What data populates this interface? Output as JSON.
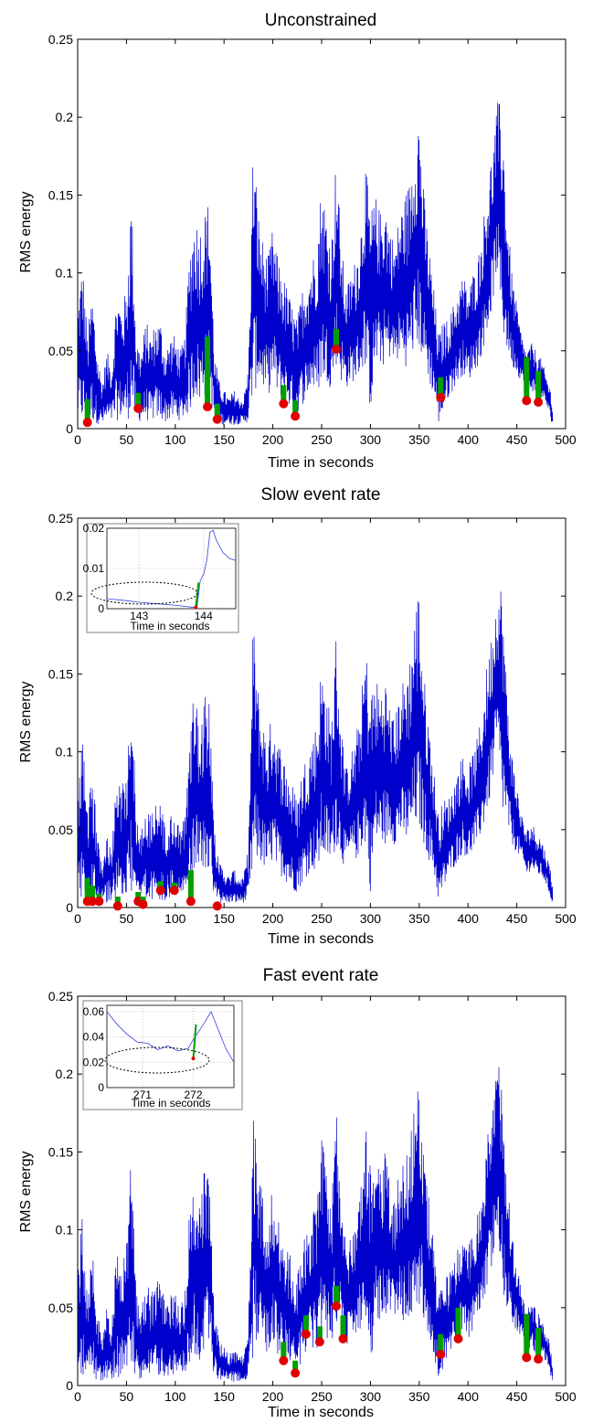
{
  "chart_data": [
    {
      "type": "line",
      "title": "Unconstrained",
      "xlabel": "Time in seconds",
      "ylabel": "RMS energy",
      "xlim": [
        0,
        500
      ],
      "ylim": [
        0,
        0.25
      ],
      "xticks": [
        "0",
        "50",
        "100",
        "150",
        "200",
        "250",
        "300",
        "350",
        "400",
        "450",
        "500"
      ],
      "yticks": [
        "0",
        "0.05",
        "0.1",
        "0.15",
        "0.2",
        "0.25"
      ],
      "grid": false,
      "line_color": "#0000cc",
      "event_color": "#e00000",
      "marker_color": "#00a000",
      "signal_envelope": [
        {
          "x": 0,
          "lo": 0.005,
          "hi": 0.08
        },
        {
          "x": 5,
          "lo": 0.003,
          "hi": 0.11
        },
        {
          "x": 10,
          "lo": 0.002,
          "hi": 0.06
        },
        {
          "x": 15,
          "lo": 0.004,
          "hi": 0.09
        },
        {
          "x": 20,
          "lo": 0.003,
          "hi": 0.05
        },
        {
          "x": 25,
          "lo": 0.002,
          "hi": 0.03
        },
        {
          "x": 30,
          "lo": 0.003,
          "hi": 0.05
        },
        {
          "x": 35,
          "lo": 0.004,
          "hi": 0.04
        },
        {
          "x": 40,
          "lo": 0.005,
          "hi": 0.09
        },
        {
          "x": 45,
          "lo": 0.006,
          "hi": 0.08
        },
        {
          "x": 50,
          "lo": 0.004,
          "hi": 0.09
        },
        {
          "x": 55,
          "lo": 0.01,
          "hi": 0.155
        },
        {
          "x": 60,
          "lo": 0.005,
          "hi": 0.06
        },
        {
          "x": 65,
          "lo": 0.004,
          "hi": 0.05
        },
        {
          "x": 70,
          "lo": 0.005,
          "hi": 0.07
        },
        {
          "x": 75,
          "lo": 0.004,
          "hi": 0.06
        },
        {
          "x": 80,
          "lo": 0.006,
          "hi": 0.07
        },
        {
          "x": 85,
          "lo": 0.005,
          "hi": 0.07
        },
        {
          "x": 90,
          "lo": 0.004,
          "hi": 0.05
        },
        {
          "x": 95,
          "lo": 0.005,
          "hi": 0.06
        },
        {
          "x": 100,
          "lo": 0.006,
          "hi": 0.06
        },
        {
          "x": 105,
          "lo": 0.005,
          "hi": 0.05
        },
        {
          "x": 110,
          "lo": 0.007,
          "hi": 0.06
        },
        {
          "x": 115,
          "lo": 0.01,
          "hi": 0.12
        },
        {
          "x": 120,
          "lo": 0.02,
          "hi": 0.14
        },
        {
          "x": 125,
          "lo": 0.015,
          "hi": 0.13
        },
        {
          "x": 130,
          "lo": 0.02,
          "hi": 0.14
        },
        {
          "x": 135,
          "lo": 0.02,
          "hi": 0.15
        },
        {
          "x": 140,
          "lo": 0.005,
          "hi": 0.05
        },
        {
          "x": 145,
          "lo": 0.003,
          "hi": 0.03
        },
        {
          "x": 150,
          "lo": 0.002,
          "hi": 0.025
        },
        {
          "x": 155,
          "lo": 0.003,
          "hi": 0.02
        },
        {
          "x": 160,
          "lo": 0.002,
          "hi": 0.025
        },
        {
          "x": 165,
          "lo": 0.003,
          "hi": 0.02
        },
        {
          "x": 170,
          "lo": 0.003,
          "hi": 0.02
        },
        {
          "x": 175,
          "lo": 0.004,
          "hi": 0.04
        },
        {
          "x": 180,
          "lo": 0.02,
          "hi": 0.19
        },
        {
          "x": 185,
          "lo": 0.03,
          "hi": 0.14
        },
        {
          "x": 190,
          "lo": 0.025,
          "hi": 0.12
        },
        {
          "x": 195,
          "lo": 0.02,
          "hi": 0.11
        },
        {
          "x": 200,
          "lo": 0.03,
          "hi": 0.13
        },
        {
          "x": 205,
          "lo": 0.02,
          "hi": 0.11
        },
        {
          "x": 210,
          "lo": 0.02,
          "hi": 0.1
        },
        {
          "x": 215,
          "lo": 0.015,
          "hi": 0.09
        },
        {
          "x": 220,
          "lo": 0.01,
          "hi": 0.08
        },
        {
          "x": 225,
          "lo": 0.01,
          "hi": 0.07
        },
        {
          "x": 230,
          "lo": 0.015,
          "hi": 0.09
        },
        {
          "x": 235,
          "lo": 0.02,
          "hi": 0.1
        },
        {
          "x": 240,
          "lo": 0.025,
          "hi": 0.11
        },
        {
          "x": 245,
          "lo": 0.02,
          "hi": 0.12
        },
        {
          "x": 250,
          "lo": 0.03,
          "hi": 0.16
        },
        {
          "x": 255,
          "lo": 0.03,
          "hi": 0.14
        },
        {
          "x": 260,
          "lo": 0.025,
          "hi": 0.12
        },
        {
          "x": 265,
          "lo": 0.04,
          "hi": 0.18
        },
        {
          "x": 270,
          "lo": 0.03,
          "hi": 0.12
        },
        {
          "x": 275,
          "lo": 0.025,
          "hi": 0.09
        },
        {
          "x": 280,
          "lo": 0.03,
          "hi": 0.1
        },
        {
          "x": 285,
          "lo": 0.03,
          "hi": 0.11
        },
        {
          "x": 290,
          "lo": 0.035,
          "hi": 0.13
        },
        {
          "x": 295,
          "lo": 0.04,
          "hi": 0.17
        },
        {
          "x": 300,
          "lo": 0.01,
          "hi": 0.14
        },
        {
          "x": 305,
          "lo": 0.04,
          "hi": 0.15
        },
        {
          "x": 310,
          "lo": 0.04,
          "hi": 0.14
        },
        {
          "x": 315,
          "lo": 0.04,
          "hi": 0.15
        },
        {
          "x": 320,
          "lo": 0.045,
          "hi": 0.13
        },
        {
          "x": 325,
          "lo": 0.04,
          "hi": 0.12
        },
        {
          "x": 330,
          "lo": 0.045,
          "hi": 0.14
        },
        {
          "x": 335,
          "lo": 0.04,
          "hi": 0.15
        },
        {
          "x": 340,
          "lo": 0.04,
          "hi": 0.16
        },
        {
          "x": 345,
          "lo": 0.05,
          "hi": 0.19
        },
        {
          "x": 350,
          "lo": 0.05,
          "hi": 0.21
        },
        {
          "x": 355,
          "lo": 0.04,
          "hi": 0.15
        },
        {
          "x": 360,
          "lo": 0.03,
          "hi": 0.12
        },
        {
          "x": 365,
          "lo": 0.02,
          "hi": 0.09
        },
        {
          "x": 370,
          "lo": 0.003,
          "hi": 0.06
        },
        {
          "x": 375,
          "lo": 0.01,
          "hi": 0.07
        },
        {
          "x": 380,
          "lo": 0.02,
          "hi": 0.07
        },
        {
          "x": 385,
          "lo": 0.025,
          "hi": 0.08
        },
        {
          "x": 390,
          "lo": 0.03,
          "hi": 0.09
        },
        {
          "x": 395,
          "lo": 0.035,
          "hi": 0.1
        },
        {
          "x": 400,
          "lo": 0.03,
          "hi": 0.09
        },
        {
          "x": 405,
          "lo": 0.035,
          "hi": 0.1
        },
        {
          "x": 410,
          "lo": 0.04,
          "hi": 0.11
        },
        {
          "x": 415,
          "lo": 0.05,
          "hi": 0.13
        },
        {
          "x": 420,
          "lo": 0.06,
          "hi": 0.16
        },
        {
          "x": 425,
          "lo": 0.08,
          "hi": 0.18
        },
        {
          "x": 430,
          "lo": 0.1,
          "hi": 0.21
        },
        {
          "x": 435,
          "lo": 0.06,
          "hi": 0.21
        },
        {
          "x": 440,
          "lo": 0.05,
          "hi": 0.14
        },
        {
          "x": 445,
          "lo": 0.04,
          "hi": 0.1
        },
        {
          "x": 450,
          "lo": 0.035,
          "hi": 0.08
        },
        {
          "x": 455,
          "lo": 0.03,
          "hi": 0.06
        },
        {
          "x": 460,
          "lo": 0.02,
          "hi": 0.05
        },
        {
          "x": 465,
          "lo": 0.025,
          "hi": 0.055
        },
        {
          "x": 470,
          "lo": 0.02,
          "hi": 0.05
        },
        {
          "x": 475,
          "lo": 0.02,
          "hi": 0.045
        },
        {
          "x": 480,
          "lo": 0.015,
          "hi": 0.035
        },
        {
          "x": 485,
          "lo": 0.005,
          "hi": 0.025
        },
        {
          "x": 487,
          "lo": 0.002,
          "hi": 0.01
        }
      ],
      "events": [
        {
          "x": 10,
          "y": 0.004,
          "bar": 0.015
        },
        {
          "x": 62,
          "y": 0.013,
          "bar": 0.01
        },
        {
          "x": 133,
          "y": 0.014,
          "bar": 0.045
        },
        {
          "x": 143,
          "y": 0.006,
          "bar": 0.01
        },
        {
          "x": 211,
          "y": 0.016,
          "bar": 0.012
        },
        {
          "x": 223,
          "y": 0.008,
          "bar": 0.01
        },
        {
          "x": 265,
          "y": 0.051,
          "bar": 0.013
        },
        {
          "x": 372,
          "y": 0.02,
          "bar": 0.013
        },
        {
          "x": 460,
          "y": 0.018,
          "bar": 0.028
        },
        {
          "x": 472,
          "y": 0.017,
          "bar": 0.02
        }
      ]
    },
    {
      "type": "line",
      "title": "Slow event rate",
      "xlabel": "Time in seconds",
      "ylabel": "RMS energy",
      "xlim": [
        0,
        500
      ],
      "ylim": [
        0,
        0.25
      ],
      "xticks": [
        "0",
        "50",
        "100",
        "150",
        "200",
        "250",
        "300",
        "350",
        "400",
        "450",
        "500"
      ],
      "yticks": [
        "0",
        "0.05",
        "0.1",
        "0.15",
        "0.2",
        "0.25"
      ],
      "grid": false,
      "events": [
        {
          "x": 10,
          "y": 0.004,
          "bar": 0.015
        },
        {
          "x": 15,
          "y": 0.004,
          "bar": 0.01
        },
        {
          "x": 22,
          "y": 0.004,
          "bar": 0.005
        },
        {
          "x": 41,
          "y": 0.001,
          "bar": 0.006
        },
        {
          "x": 62,
          "y": 0.004,
          "bar": 0.006
        },
        {
          "x": 67,
          "y": 0.002,
          "bar": 0.005
        },
        {
          "x": 85,
          "y": 0.011,
          "bar": 0.006
        },
        {
          "x": 99,
          "y": 0.011,
          "bar": 0.005
        },
        {
          "x": 116,
          "y": 0.004,
          "bar": 0.02
        },
        {
          "x": 143,
          "y": 0.001,
          "bar": 0.0
        }
      ],
      "inset": {
        "xlabel": "Time in seconds",
        "xlim": [
          142.5,
          144.5
        ],
        "ylim": [
          0,
          0.02
        ],
        "xticks": [
          "143",
          "144"
        ],
        "yticks": [
          "0",
          "0.01",
          "0.02"
        ],
        "signal": [
          {
            "x": 142.5,
            "y": 0.0025
          },
          {
            "x": 142.8,
            "y": 0.002
          },
          {
            "x": 143.0,
            "y": 0.0016
          },
          {
            "x": 143.3,
            "y": 0.0012
          },
          {
            "x": 143.6,
            "y": 0.0008
          },
          {
            "x": 143.85,
            "y": 0.0003
          },
          {
            "x": 143.9,
            "y": 0.0006
          },
          {
            "x": 143.95,
            "y": 0.007
          },
          {
            "x": 144.0,
            "y": 0.0085
          },
          {
            "x": 144.05,
            "y": 0.012
          },
          {
            "x": 144.1,
            "y": 0.019
          },
          {
            "x": 144.15,
            "y": 0.0195
          },
          {
            "x": 144.2,
            "y": 0.017
          },
          {
            "x": 144.3,
            "y": 0.014
          },
          {
            "x": 144.4,
            "y": 0.0125
          },
          {
            "x": 144.5,
            "y": 0.012
          }
        ],
        "event": {
          "x": 143.88,
          "y": 0.0003,
          "bar_top": 0.0065
        }
      }
    },
    {
      "type": "line",
      "title": "Fast event rate",
      "xlabel": "Time in seconds",
      "ylabel": "RMS energy",
      "xlim": [
        0,
        500
      ],
      "ylim": [
        0,
        0.25
      ],
      "xticks": [
        "0",
        "50",
        "100",
        "150",
        "200",
        "250",
        "300",
        "350",
        "400",
        "450",
        "500"
      ],
      "yticks": [
        "0",
        "0.05",
        "0.1",
        "0.15",
        "0.2",
        "0.25"
      ],
      "grid": false,
      "events": [
        {
          "x": 211,
          "y": 0.016,
          "bar": 0.012
        },
        {
          "x": 223,
          "y": 0.008,
          "bar": 0.008
        },
        {
          "x": 234,
          "y": 0.033,
          "bar": 0.012
        },
        {
          "x": 248,
          "y": 0.028,
          "bar": 0.01
        },
        {
          "x": 265,
          "y": 0.051,
          "bar": 0.013
        },
        {
          "x": 272,
          "y": 0.03,
          "bar": 0.015
        },
        {
          "x": 372,
          "y": 0.02,
          "bar": 0.013
        },
        {
          "x": 390,
          "y": 0.03,
          "bar": 0.02
        },
        {
          "x": 460,
          "y": 0.018,
          "bar": 0.028
        },
        {
          "x": 472,
          "y": 0.017,
          "bar": 0.02
        }
      ],
      "inset": {
        "xlabel": "Time in seconds",
        "xlim": [
          270.3,
          272.8
        ],
        "ylim": [
          0,
          0.065
        ],
        "xticks": [
          "271",
          "272"
        ],
        "yticks": [
          "0",
          "0.02",
          "0.04",
          "0.06"
        ],
        "signal": [
          {
            "x": 270.3,
            "y": 0.06
          },
          {
            "x": 270.5,
            "y": 0.05
          },
          {
            "x": 270.7,
            "y": 0.042
          },
          {
            "x": 270.9,
            "y": 0.036
          },
          {
            "x": 271.1,
            "y": 0.035
          },
          {
            "x": 271.3,
            "y": 0.03
          },
          {
            "x": 271.5,
            "y": 0.033
          },
          {
            "x": 271.7,
            "y": 0.029
          },
          {
            "x": 271.9,
            "y": 0.031
          },
          {
            "x": 272.0,
            "y": 0.038
          },
          {
            "x": 272.1,
            "y": 0.044
          },
          {
            "x": 272.2,
            "y": 0.05
          },
          {
            "x": 272.35,
            "y": 0.06
          },
          {
            "x": 272.5,
            "y": 0.045
          },
          {
            "x": 272.65,
            "y": 0.03
          },
          {
            "x": 272.8,
            "y": 0.02
          }
        ],
        "event": {
          "x": 272.0,
          "y": 0.023,
          "bar_top": 0.05
        }
      }
    }
  ]
}
